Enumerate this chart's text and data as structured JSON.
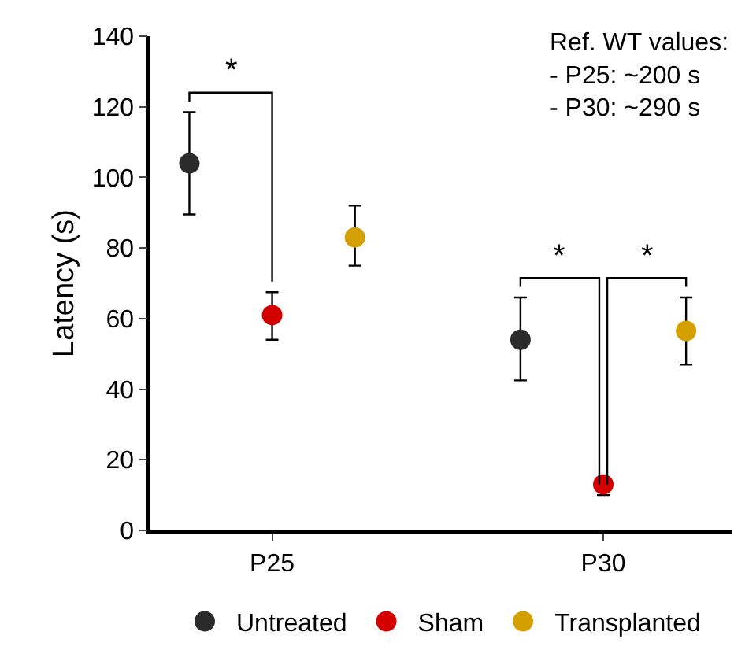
{
  "chart_data": {
    "type": "scatter",
    "ylabel": "Latency (s)",
    "categories": [
      "P25",
      "P30"
    ],
    "ylim": [
      0,
      140
    ],
    "yticks": [
      0,
      20,
      40,
      60,
      80,
      100,
      120,
      140
    ],
    "grid": false,
    "legend": "bottom",
    "marker": "circle",
    "series": [
      {
        "name": "Untreated",
        "color": "#2b2b2b",
        "values": [
          104,
          54
        ],
        "errors": [
          [
            89.5,
            118.5
          ],
          [
            42.5,
            66
          ]
        ]
      },
      {
        "name": "Sham",
        "color": "#d40000",
        "values": [
          61,
          13
        ],
        "errors": [
          [
            54,
            67.5
          ],
          [
            10,
            15
          ]
        ]
      },
      {
        "name": "Transplanted",
        "color": "#d4a000",
        "values": [
          83,
          56.5
        ],
        "errors": [
          [
            75,
            92
          ],
          [
            47,
            66
          ]
        ]
      }
    ],
    "annotations": [
      "Ref. WT values:\n- P25: ~200 s\n- P30: ~290 s",
      "*",
      {
        "text": "*",
        "x": "P30",
        "y": 13
      },
      {
        "text": "*",
        "x": "P30",
        "y": 13
      }
    ]
  }
}
